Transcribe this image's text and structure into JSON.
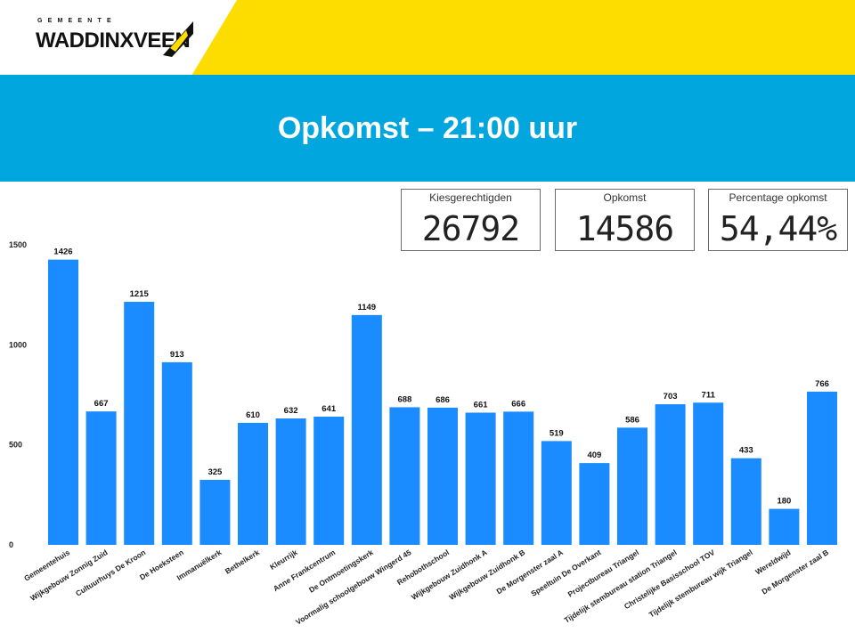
{
  "header": {
    "logo_small": "GEMEENTE",
    "logo_main": "WADDINXVEEN",
    "title": "Opkomst – 21:00 uur",
    "colors": {
      "yellow": "#fddc00",
      "blue": "#00a6dd"
    }
  },
  "kpis": [
    {
      "label": "Kiesgerechtigden",
      "value": "26792"
    },
    {
      "label": "Opkomst",
      "value": "14586"
    },
    {
      "label": "Percentage opkomst",
      "value": "54,44%"
    }
  ],
  "chart_data": {
    "type": "bar",
    "bar_color": "#1a8cff",
    "ylim": [
      0,
      1500
    ],
    "yticks": [
      0,
      500,
      1000,
      1500
    ],
    "categories": [
      "Gemeentehuis",
      "Wijkgebouw Zonnig Zuid",
      "Cultuurhuys De Kroon",
      "De Hoeksteen",
      "Immanuëlkerk",
      "Bethelkerk",
      "Kleurrijk",
      "Anne Frankcentrum",
      "De Ontmoetingskerk",
      "Voormalig schoolgebouw Wingerd 45",
      "Rehobothschool",
      "Wijkgebouw Zuidhonk A",
      "Wijkgebouw Zuidhonk B",
      "De Morgenster zaal A",
      "Speeltuin De Overkant",
      "Projectbureau Triangel",
      "Tijdelijk stembureau station Triangel",
      "Christelijke Basisschool TOV",
      "Tijdelijk stembureau wijk Triangel",
      "Wereldwijd",
      "De Morgenster zaal B"
    ],
    "values": [
      1426,
      667,
      1215,
      913,
      325,
      610,
      632,
      641,
      1149,
      688,
      686,
      661,
      666,
      519,
      409,
      586,
      703,
      711,
      433,
      180,
      766
    ]
  }
}
